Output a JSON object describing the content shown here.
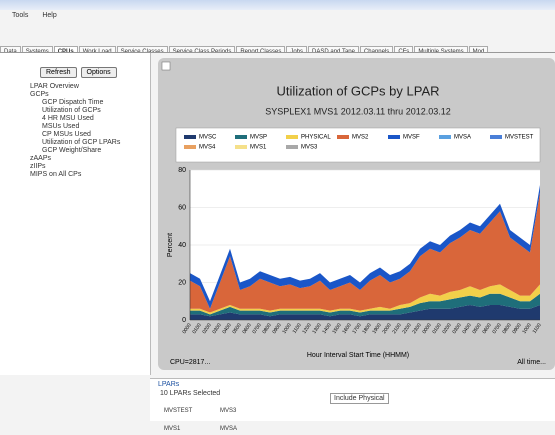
{
  "menu": [
    "Tools",
    "Help"
  ],
  "tabs": [
    "Data",
    "Systems",
    "CPUs",
    "Work Load",
    "Service Classes",
    "Service Class Periods",
    "Report Classes",
    "Jobs",
    "DASD and Tape",
    "Channels",
    "CFs",
    "Multiple Systems",
    "Mod"
  ],
  "buttons": [
    "Refresh",
    "Options"
  ],
  "tree": {
    "items": [
      "LPAR Overview",
      "GCPs"
    ],
    "children": [
      "GCP Dispatch Time",
      "Utilization of GCPs",
      "4 HR MSU Used",
      "MSUs Used",
      "CP MSUs Used",
      "Utilization of GCP LPARs",
      "GCP Weight/Share"
    ],
    "after": [
      "zAAPs",
      "zIIPs",
      "MIPS on All CPs"
    ]
  },
  "footer": {
    "left": "CPU=2817...",
    "right": "All time..."
  },
  "lpar_panel": {
    "title": "LPARs",
    "selected": "10 LPARs Selected",
    "items": [
      "MVSTEST",
      "MVS3",
      "MVS1",
      "MVSA"
    ],
    "option": "Include Physical"
  },
  "chart_data": {
    "type": "stacked_area",
    "title": "Utilization of GCPs by LPAR",
    "subtitle": "SYSPLEX1 MVS1   2012.03.11 thru 2012.03.12",
    "x_label": "Hour Interval Start Time (HHMM)",
    "y_label": "Percent",
    "ylim": [
      0,
      80
    ],
    "yticks": [
      0,
      20,
      40,
      60,
      80
    ],
    "grid": true,
    "categories": [
      "0000",
      "0100",
      "0200",
      "0300",
      "0400",
      "0500",
      "0600",
      "0700",
      "0800",
      "0900",
      "1000",
      "1100",
      "1200",
      "1300",
      "1400",
      "1500",
      "1600",
      "1700",
      "1800",
      "1900",
      "2000",
      "2100",
      "2200",
      "2300",
      "0000",
      "0100",
      "0200",
      "0300",
      "0400",
      "0500",
      "0600",
      "0700",
      "0800",
      "0900",
      "1000",
      "1100"
    ],
    "series": [
      {
        "name": "MVSC",
        "color": "#1f3a6e",
        "values": [
          3,
          3,
          2,
          3,
          4,
          3,
          3,
          3,
          2,
          3,
          3,
          3,
          3,
          3,
          2,
          3,
          3,
          2,
          3,
          3,
          3,
          3,
          4,
          5,
          6,
          6,
          6,
          7,
          8,
          7,
          8,
          8,
          7,
          6,
          6,
          8
        ]
      },
      {
        "name": "MVSP",
        "color": "#1f6e7a",
        "values": [
          2,
          2,
          1,
          2,
          3,
          2,
          2,
          2,
          2,
          2,
          2,
          2,
          2,
          2,
          2,
          2,
          2,
          2,
          2,
          2,
          2,
          3,
          3,
          4,
          4,
          4,
          5,
          5,
          5,
          5,
          6,
          6,
          5,
          4,
          4,
          6
        ]
      },
      {
        "name": "PHYSICAL",
        "color": "#f2d04a",
        "values": [
          1,
          1,
          1,
          1,
          1,
          1,
          1,
          1,
          1,
          1,
          1,
          1,
          1,
          1,
          1,
          1,
          1,
          1,
          1,
          2,
          1,
          2,
          2,
          3,
          4,
          3,
          4,
          4,
          5,
          4,
          4,
          5,
          4,
          3,
          3,
          5
        ]
      },
      {
        "name": "MVS2",
        "color": "#d9663a",
        "values": [
          15,
          12,
          2,
          14,
          26,
          10,
          12,
          16,
          15,
          12,
          13,
          11,
          12,
          15,
          11,
          12,
          14,
          11,
          15,
          17,
          14,
          14,
          17,
          22,
          24,
          23,
          26,
          28,
          30,
          30,
          34,
          39,
          28,
          27,
          23,
          49
        ]
      },
      {
        "name": "MVSF",
        "color": "#1a56c8",
        "values": [
          4,
          4,
          4,
          4,
          4,
          4,
          4,
          4,
          4,
          4,
          4,
          4,
          4,
          4,
          4,
          4,
          4,
          4,
          4,
          4,
          4,
          4,
          4,
          4,
          4,
          4,
          4,
          4,
          4,
          4,
          4,
          4,
          4,
          4,
          4,
          4
        ]
      },
      {
        "name": "MVSA",
        "color": "#5aa0e0",
        "values": [
          0,
          0,
          0,
          0,
          0,
          0,
          0,
          0,
          0,
          0,
          0,
          0,
          0,
          0,
          0,
          0,
          0,
          0,
          0,
          0,
          0,
          0,
          0,
          0,
          0,
          0,
          0,
          0,
          0,
          0,
          0,
          0,
          0,
          0,
          0,
          0
        ]
      },
      {
        "name": "MVSTEST",
        "color": "#4a7fd8",
        "values": [
          0,
          0,
          0,
          0,
          0,
          0,
          0,
          0,
          0,
          0,
          0,
          0,
          0,
          0,
          0,
          0,
          0,
          0,
          0,
          0,
          0,
          0,
          0,
          0,
          0,
          0,
          0,
          0,
          0,
          0,
          0,
          0,
          0,
          0,
          0,
          0
        ]
      },
      {
        "name": "MVS4",
        "color": "#e8a060",
        "values": [
          0,
          0,
          0,
          0,
          0,
          0,
          0,
          0,
          0,
          0,
          0,
          0,
          0,
          0,
          0,
          0,
          0,
          0,
          0,
          0,
          0,
          0,
          0,
          0,
          0,
          0,
          0,
          0,
          0,
          0,
          0,
          0,
          0,
          0,
          0,
          0
        ]
      },
      {
        "name": "MVS1",
        "color": "#f5e08a",
        "values": [
          0,
          0,
          0,
          0,
          0,
          0,
          0,
          0,
          0,
          0,
          0,
          0,
          0,
          0,
          0,
          0,
          0,
          0,
          0,
          0,
          0,
          0,
          0,
          0,
          0,
          0,
          0,
          0,
          0,
          0,
          0,
          0,
          0,
          0,
          0,
          0
        ]
      },
      {
        "name": "MVS3",
        "color": "#a8a8a8",
        "values": [
          0,
          0,
          0,
          0,
          0,
          0,
          0,
          0,
          0,
          0,
          0,
          0,
          0,
          0,
          0,
          0,
          0,
          0,
          0,
          0,
          0,
          0,
          0,
          0,
          0,
          0,
          0,
          0,
          0,
          0,
          0,
          0,
          0,
          0,
          0,
          0
        ]
      }
    ]
  }
}
